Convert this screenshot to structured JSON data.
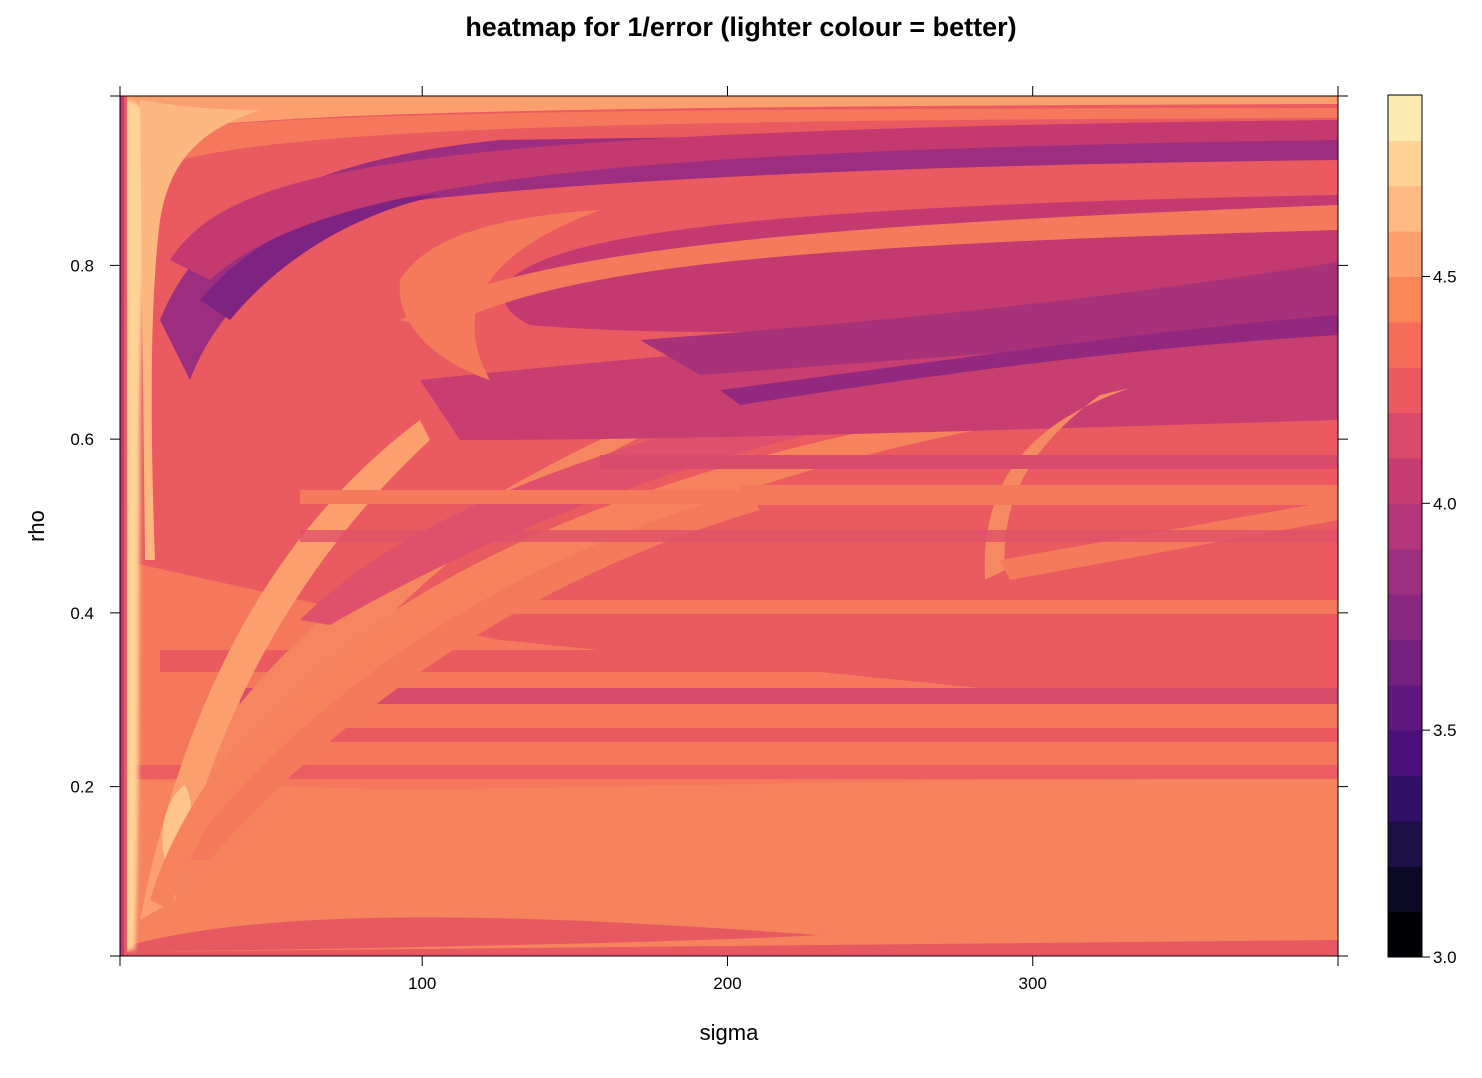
{
  "chart_data": {
    "type": "heatmap",
    "title": "heatmap for 1/error (lighter colour = better)",
    "xlabel": "sigma",
    "ylabel": "rho",
    "xlim": [
      1,
      400
    ],
    "ylim": [
      0.005,
      0.995
    ],
    "x_ticks": [
      {
        "value": 100,
        "label": "100"
      },
      {
        "value": 200,
        "label": "200"
      },
      {
        "value": 300,
        "label": "300"
      }
    ],
    "y_ticks": [
      {
        "value": 0.2,
        "label": "0.2"
      },
      {
        "value": 0.4,
        "label": "0.4"
      },
      {
        "value": 0.6,
        "label": "0.6"
      },
      {
        "value": 0.8,
        "label": "0.8"
      }
    ],
    "colorbar": {
      "min": 3.0,
      "max": 4.9,
      "step": 0.1,
      "ticks": [
        {
          "value": 3.0,
          "label": "3.0"
        },
        {
          "value": 3.5,
          "label": "3.5"
        },
        {
          "value": 4.0,
          "label": "4.0"
        },
        {
          "value": 4.5,
          "label": "4.5"
        }
      ],
      "colors": [
        "#000004",
        "#0c0926",
        "#1c1044",
        "#331067",
        "#4a1079",
        "#5f187f",
        "#73207f",
        "#892781",
        "#9d2f7f",
        "#b3367a",
        "#c73d73",
        "#da4a6a",
        "#ea5a60",
        "#f56d58",
        "#fa8657",
        "#fea16e",
        "#feba80",
        "#fed395",
        "#fcebb0"
      ]
    },
    "grid": false,
    "legend": "colorbar right"
  }
}
